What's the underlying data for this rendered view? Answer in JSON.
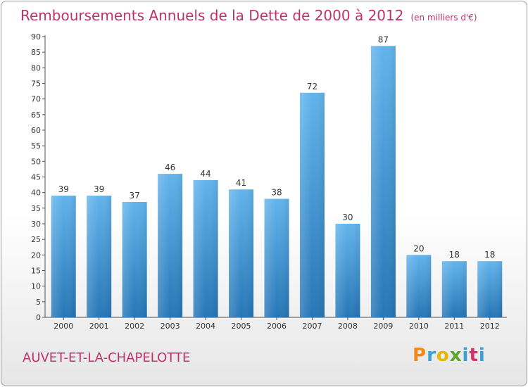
{
  "chart_data": {
    "type": "bar",
    "title": "Remboursements Annuels de la Dette de 2000 à 2012",
    "subtitle": "(en milliers d'€)",
    "categories": [
      "2000",
      "2001",
      "2002",
      "2003",
      "2004",
      "2005",
      "2006",
      "2007",
      "2008",
      "2009",
      "2010",
      "2011",
      "2012"
    ],
    "values": [
      39,
      39,
      37,
      46,
      44,
      41,
      38,
      72,
      30,
      87,
      20,
      18,
      18
    ],
    "ylim": [
      0,
      90
    ],
    "yticks": [
      0,
      5,
      10,
      15,
      20,
      25,
      30,
      35,
      40,
      45,
      50,
      55,
      60,
      65,
      70,
      75,
      80,
      85,
      90
    ],
    "grid": false,
    "xlabel": "",
    "ylabel": ""
  },
  "town": "AUVET-ET-LA-CHAPELOTTE",
  "logo": {
    "p": "P",
    "r": "r",
    "o": "o",
    "x": "x",
    "i": "i",
    "t": "t",
    "i2": "i"
  },
  "colors": {
    "bar_light": "#5aaee8",
    "bar_dark": "#2878b8",
    "title": "#c0306a"
  }
}
